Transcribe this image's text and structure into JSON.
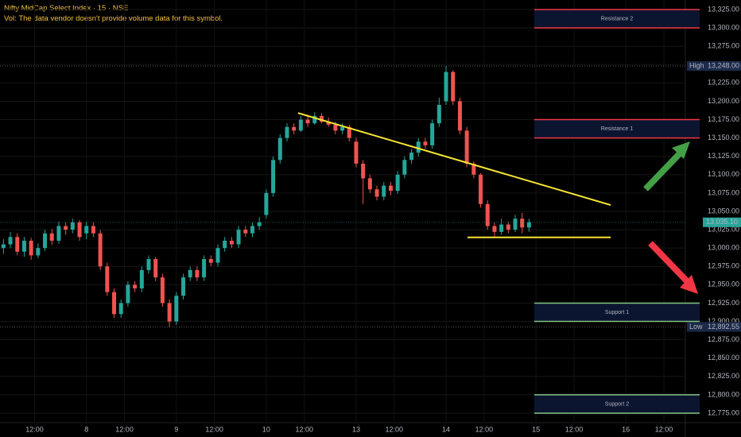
{
  "chart_data": {
    "type": "candlestick",
    "title": "Nifty MidCap Select Index · 15 · NSE",
    "subtitle": "Vol: The data vendor doesn't provide volume data for this symbol.",
    "up_color": "#26a69a",
    "down_color": "#ef5350",
    "open": [
      13000,
      13005,
      13015,
      12995,
      13010,
      12990,
      13000,
      13020,
      13010,
      13030,
      13025,
      13035,
      13020,
      13030,
      13020,
      12975,
      12940,
      12910,
      12925,
      12950,
      12945,
      12970,
      12985,
      12960,
      12925,
      12900,
      12935,
      12960,
      12970,
      12960,
      12985,
      12980,
      13000,
      13010,
      13005,
      13025,
      13020,
      13030,
      13045,
      13075,
      13120,
      13150,
      13165,
      13160,
      13175,
      13170,
      13180,
      13172,
      13168,
      13160,
      13165,
      13145,
      13115,
      13095,
      13080,
      13070,
      13085,
      13078,
      13100,
      13120,
      13130,
      13145,
      13140,
      13170,
      13200,
      13240,
      13200,
      13160,
      13115,
      13100,
      13060,
      13030,
      13022,
      13032,
      13025,
      13040,
      13028
    ],
    "high": [
      13012,
      13022,
      13020,
      13015,
      13014,
      13006,
      13025,
      13026,
      13036,
      13035,
      13040,
      13038,
      13036,
      13035,
      13025,
      12980,
      12945,
      12930,
      12955,
      12955,
      12975,
      12990,
      12988,
      12965,
      12930,
      12940,
      12965,
      12975,
      12975,
      12990,
      12990,
      13005,
      13015,
      13015,
      13030,
      13030,
      13035,
      13042,
      13080,
      13125,
      13155,
      13170,
      13170,
      13180,
      13182,
      13185,
      13184,
      13178,
      13172,
      13170,
      13168,
      13150,
      13120,
      13100,
      13085,
      13090,
      13090,
      13105,
      13125,
      13135,
      13150,
      13150,
      13175,
      13205,
      13248,
      13242,
      13205,
      13165,
      13118,
      13102,
      13065,
      13035,
      13040,
      13036,
      13045,
      13048,
      13040
    ],
    "low": [
      12992,
      13000,
      12990,
      12988,
      12984,
      12986,
      12996,
      13004,
      13006,
      13018,
      13020,
      13010,
      13012,
      13015,
      12970,
      12935,
      12905,
      12905,
      12920,
      12940,
      12940,
      12965,
      12955,
      12920,
      12892.55,
      12895,
      12930,
      12955,
      12955,
      12955,
      12975,
      12975,
      12995,
      13000,
      13000,
      13015,
      13015,
      13025,
      13040,
      13070,
      13115,
      13145,
      13155,
      13158,
      13165,
      13168,
      13170,
      13165,
      13155,
      13155,
      13145,
      13110,
      13060,
      13075,
      13065,
      13065,
      13072,
      13074,
      13095,
      13115,
      13125,
      13135,
      13135,
      13165,
      13195,
      13195,
      13155,
      13110,
      13095,
      13055,
      13025,
      13015,
      13018,
      13020,
      13022,
      13020,
      13022
    ],
    "close": [
      13005,
      13015,
      12995,
      13010,
      12990,
      13000,
      13020,
      13010,
      13030,
      13025,
      13035,
      13015,
      13030,
      13020,
      12975,
      12940,
      12910,
      12925,
      12950,
      12945,
      12970,
      12985,
      12960,
      12925,
      12900,
      12935,
      12960,
      12970,
      12960,
      12985,
      12980,
      13000,
      13010,
      13005,
      13025,
      13020,
      13030,
      13035,
      13075,
      13120,
      13150,
      13165,
      13160,
      13175,
      13170,
      13180,
      13172,
      13168,
      13160,
      13165,
      13150,
      13115,
      13095,
      13080,
      13070,
      13085,
      13078,
      13100,
      13120,
      13130,
      13145,
      13140,
      13170,
      13195,
      13240,
      13200,
      13160,
      13115,
      13100,
      13060,
      13030,
      13022,
      13032,
      13025,
      13040,
      13028,
      13035.1
    ],
    "xlim": [
      -0.5,
      98.6
    ],
    "xticks": [
      {
        "value": 4.5,
        "label": "12:00"
      },
      {
        "value": 12,
        "label": "8"
      },
      {
        "value": 17.5,
        "label": "12:00"
      },
      {
        "value": 25,
        "label": "9"
      },
      {
        "value": 30.5,
        "label": "12:00"
      },
      {
        "value": 38,
        "label": "10"
      },
      {
        "value": 43.5,
        "label": "12:00"
      },
      {
        "value": 51,
        "label": "13"
      },
      {
        "value": 56.5,
        "label": "12:00"
      },
      {
        "value": 64,
        "label": "14"
      },
      {
        "value": 69.5,
        "label": "12:00"
      },
      {
        "value": 77,
        "label": "15"
      },
      {
        "value": 82.5,
        "label": "12:00"
      },
      {
        "value": 90,
        "label": "16"
      },
      {
        "value": 95.5,
        "label": "12:00"
      }
    ],
    "ylim": [
      12762,
      13338
    ],
    "yticks": [
      {
        "value": 12775,
        "label": "12,775.00"
      },
      {
        "value": 12800,
        "label": "12,800.00"
      },
      {
        "value": 12825,
        "label": "12,825.00"
      },
      {
        "value": 12850,
        "label": "12,850.00"
      },
      {
        "value": 12875,
        "label": "12,875.00"
      },
      {
        "value": 12900,
        "label": "12,900.00"
      },
      {
        "value": 12925,
        "label": "12,925.00"
      },
      {
        "value": 12950,
        "label": "12,950.00"
      },
      {
        "value": 12975,
        "label": "12,975.00"
      },
      {
        "value": 13000,
        "label": "13,000.00"
      },
      {
        "value": 13025,
        "label": "13,025.00"
      },
      {
        "value": 13050,
        "label": "13,050.00"
      },
      {
        "value": 13075,
        "label": "13,075.00"
      },
      {
        "value": 13100,
        "label": "13,100.00"
      },
      {
        "value": 13125,
        "label": "13,125.00"
      },
      {
        "value": 13150,
        "label": "13,150.00"
      },
      {
        "value": 13175,
        "label": "13,175.00"
      },
      {
        "value": 13200,
        "label": "13,200.00"
      },
      {
        "value": 13225,
        "label": "13,225.00"
      },
      {
        "value": 13250,
        "label": "13,250.00"
      },
      {
        "value": 13275,
        "label": "13,275.00"
      },
      {
        "value": 13300,
        "label": "13,300.00"
      },
      {
        "value": 13325,
        "label": "13,325.00"
      }
    ],
    "grid": true,
    "high_marker": {
      "name": "High",
      "value": 13248,
      "label": "13,248.00"
    },
    "low_marker": {
      "name": "Low",
      "value": 12892.55,
      "label": "12,892.55"
    },
    "last_price": {
      "value": 13035.1,
      "label": "13,035.10",
      "color": "#26a69a"
    },
    "zones": [
      {
        "name": "Resistance 2",
        "top": 13325,
        "bottom": 13300,
        "color": "#f23645"
      },
      {
        "name": "Resistance 1",
        "top": 13175,
        "bottom": 13150,
        "color": "#f23645"
      },
      {
        "name": "Support 1",
        "top": 12925,
        "bottom": 12900,
        "color": "#81c784"
      },
      {
        "name": "Support 2",
        "top": 12800,
        "bottom": 12775,
        "color": "#81c784"
      }
    ],
    "trend_lines": [
      {
        "x1": 42.6,
        "y1": 13184,
        "x2": 87.8,
        "y2": 13058.6,
        "color": "#f7e633"
      },
      {
        "x1": 67.1,
        "y1": 13014.5,
        "x2": 87.8,
        "y2": 13014.5,
        "color": "#f7e633"
      }
    ]
  }
}
